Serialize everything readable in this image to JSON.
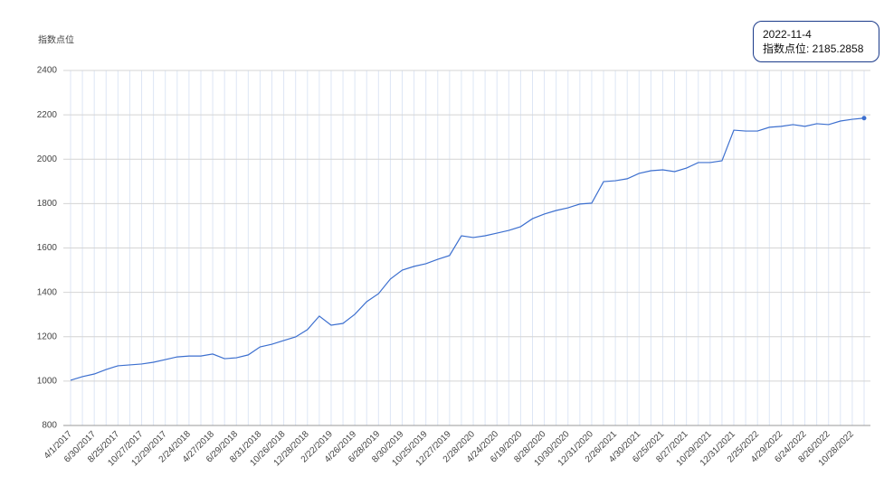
{
  "chart_data": {
    "type": "line",
    "y_label": "指数点位",
    "categories": [
      "4/1/2017",
      null,
      "6/30/2017",
      null,
      "8/25/2017",
      null,
      "10/27/2017",
      null,
      "12/29/2017",
      null,
      "2/24/2018",
      null,
      "4/27/2018",
      null,
      "6/29/2018",
      null,
      "8/31/2018",
      null,
      "10/26/2018",
      null,
      "12/28/2018",
      null,
      "2/22/2019",
      null,
      "4/26/2019",
      null,
      "6/28/2019",
      null,
      "8/30/2019",
      null,
      "10/25/2019",
      null,
      "12/27/2019",
      null,
      "2/28/2020",
      null,
      "4/24/2020",
      null,
      "6/19/2020",
      null,
      "8/28/2020",
      null,
      "10/30/2020",
      null,
      "12/31/2020",
      null,
      "2/26/2021",
      null,
      "4/30/2021",
      null,
      "6/25/2021",
      null,
      "8/27/2021",
      null,
      "10/29/2021",
      null,
      "12/31/2021",
      null,
      "2/25/2022",
      null,
      "4/29/2022",
      null,
      "6/24/2022",
      null,
      "8/26/2022",
      null,
      "10/28/2022",
      null
    ],
    "series": [
      {
        "name": "指数点位",
        "color": "#3c6fcf",
        "values": [
          1004,
          1020,
          1032,
          1052,
          1069,
          1073,
          1077,
          1085,
          1097,
          1109,
          1113,
          1113,
          1122,
          1101,
          1105,
          1118,
          1154,
          1166,
          1183,
          1199,
          1232,
          1293,
          1252,
          1260,
          1301,
          1358,
          1394,
          1460,
          1500,
          1517,
          1529,
          1549,
          1566,
          1655,
          1647,
          1655,
          1667,
          1679,
          1696,
          1732,
          1753,
          1769,
          1781,
          1798,
          1802,
          1899,
          1903,
          1912,
          1936,
          1948,
          1952,
          1944,
          1960,
          1985,
          1985,
          1993,
          2131,
          2127,
          2127,
          2144,
          2148,
          2156,
          2148,
          2160,
          2156,
          2172,
          2180,
          2185.2858
        ]
      }
    ],
    "ylim": [
      800,
      2400
    ],
    "yticks": [
      800,
      1000,
      1200,
      1400,
      1600,
      1800,
      2000,
      2200,
      2400
    ],
    "grid": true,
    "tooltip": {
      "title": "2022-11-4",
      "text": "指数点位: 2185.2858"
    }
  }
}
